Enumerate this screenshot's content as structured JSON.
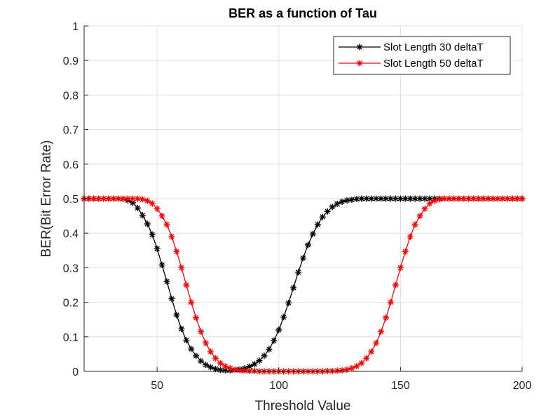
{
  "chart_data": {
    "type": "line",
    "title": "BER as a function of Tau",
    "xlabel": "Threshold Value",
    "ylabel": "BER(Bit Error Rate)",
    "xlim": [
      20,
      200
    ],
    "ylim": [
      0,
      1
    ],
    "xticks": [
      50,
      100,
      150,
      200
    ],
    "yticks": [
      0,
      0.1,
      0.2,
      0.3,
      0.4,
      0.5,
      0.6,
      0.7,
      0.8,
      0.9,
      1
    ],
    "grid": true,
    "legend_position": "top-right",
    "x": [
      20,
      22,
      24,
      26,
      28,
      30,
      32,
      34,
      36,
      38,
      40,
      42,
      44,
      46,
      48,
      50,
      52,
      54,
      56,
      58,
      60,
      62,
      64,
      66,
      68,
      70,
      72,
      74,
      76,
      78,
      80,
      82,
      84,
      86,
      88,
      90,
      92,
      94,
      96,
      98,
      100,
      102,
      104,
      106,
      108,
      110,
      112,
      114,
      116,
      118,
      120,
      122,
      124,
      126,
      128,
      130,
      132,
      134,
      136,
      138,
      140,
      142,
      144,
      146,
      148,
      150,
      152,
      154,
      156,
      158,
      160,
      162,
      164,
      166,
      168,
      170,
      172,
      174,
      176,
      178,
      180,
      182,
      184,
      186,
      188,
      190,
      192,
      194,
      196,
      198,
      200
    ],
    "series": [
      {
        "name": "Slot Length 30 deltaT",
        "color": "#000000",
        "marker": "asterisk",
        "values": [
          0.5,
          0.5,
          0.5,
          0.5,
          0.5,
          0.5,
          0.5,
          0.5,
          0.499,
          0.495,
          0.488,
          0.473,
          0.452,
          0.427,
          0.396,
          0.355,
          0.308,
          0.26,
          0.21,
          0.163,
          0.123,
          0.09,
          0.065,
          0.045,
          0.03,
          0.019,
          0.012,
          0.007,
          0.004,
          0.003,
          0.003,
          0.004,
          0.006,
          0.009,
          0.014,
          0.021,
          0.031,
          0.045,
          0.064,
          0.089,
          0.12,
          0.157,
          0.198,
          0.242,
          0.287,
          0.328,
          0.366,
          0.398,
          0.425,
          0.447,
          0.463,
          0.476,
          0.485,
          0.491,
          0.495,
          0.497,
          0.499,
          0.5,
          0.5,
          0.5,
          0.5,
          0.5,
          0.5,
          0.5,
          0.5,
          0.5,
          0.5,
          0.5,
          0.5,
          0.5,
          0.5,
          0.5,
          0.5,
          0.5,
          0.5,
          0.5,
          0.5,
          0.5,
          0.5,
          0.5,
          0.5,
          0.5,
          0.5,
          0.5,
          0.5,
          0.5,
          0.5,
          0.5,
          0.5,
          0.5,
          0.5
        ]
      },
      {
        "name": "Slot Length 50 deltaT",
        "color": "#ff0000",
        "marker": "asterisk",
        "values": [
          0.5,
          0.5,
          0.5,
          0.5,
          0.5,
          0.5,
          0.5,
          0.5,
          0.5,
          0.5,
          0.5,
          0.5,
          0.498,
          0.494,
          0.486,
          0.471,
          0.45,
          0.425,
          0.39,
          0.347,
          0.3,
          0.25,
          0.2,
          0.155,
          0.115,
          0.082,
          0.057,
          0.038,
          0.024,
          0.015,
          0.009,
          0.005,
          0.003,
          0.002,
          0.001,
          0.001,
          0.0,
          0.0,
          0.0,
          0.0,
          0.0,
          0.0,
          0.0,
          0.0,
          0.0,
          0.0,
          0.0,
          0.0,
          0.0,
          0.0,
          0.001,
          0.001,
          0.002,
          0.003,
          0.005,
          0.009,
          0.015,
          0.024,
          0.038,
          0.057,
          0.082,
          0.115,
          0.155,
          0.2,
          0.25,
          0.3,
          0.347,
          0.39,
          0.425,
          0.45,
          0.471,
          0.486,
          0.494,
          0.498,
          0.5,
          0.5,
          0.5,
          0.5,
          0.5,
          0.5,
          0.5,
          0.5,
          0.5,
          0.5,
          0.5,
          0.5,
          0.5,
          0.5,
          0.5,
          0.5,
          0.5
        ]
      }
    ]
  }
}
